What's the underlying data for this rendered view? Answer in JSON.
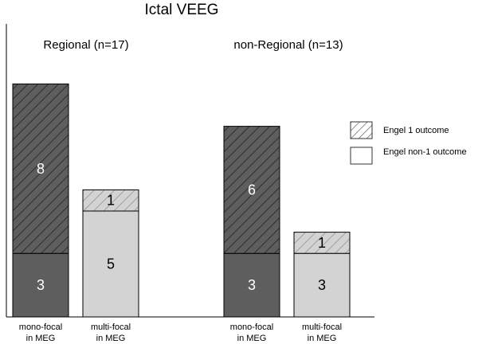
{
  "chart_data": {
    "type": "bar",
    "stacked": true,
    "title": "Ictal VEEG",
    "groups": [
      {
        "title": "Regional (n=17)",
        "bars": [
          {
            "line1": "mono-focal",
            "line2": "in MEG",
            "engel1": 8,
            "engel_non1": 3,
            "shade": "dark"
          },
          {
            "line1": "multi-focal",
            "line2": "in MEG",
            "engel1": 1,
            "engel_non1": 5,
            "shade": "light"
          }
        ]
      },
      {
        "title": "non-Regional (n=13)",
        "bars": [
          {
            "line1": "mono-focal",
            "line2": "in MEG",
            "engel1": 6,
            "engel_non1": 3,
            "shade": "dark"
          },
          {
            "line1": "multi-focal",
            "line2": "in MEG",
            "engel1": 1,
            "engel_non1": 3,
            "shade": "light"
          }
        ]
      }
    ],
    "series": [
      {
        "name": "Engel 1 outcome",
        "key": "engel1",
        "pattern": "hatched"
      },
      {
        "name": "Engel non-1 outcome",
        "key": "engel_non1",
        "pattern": "solid"
      }
    ],
    "ylim": [
      0,
      11
    ],
    "colors": {
      "dark_fill": "#5e5e5e",
      "light_fill": "#d3d3d3",
      "hatch_dark": "#2e2e2e",
      "hatch_light": "#8a8a8a",
      "dark_text": "#ffffff",
      "light_text": "#000000"
    }
  }
}
